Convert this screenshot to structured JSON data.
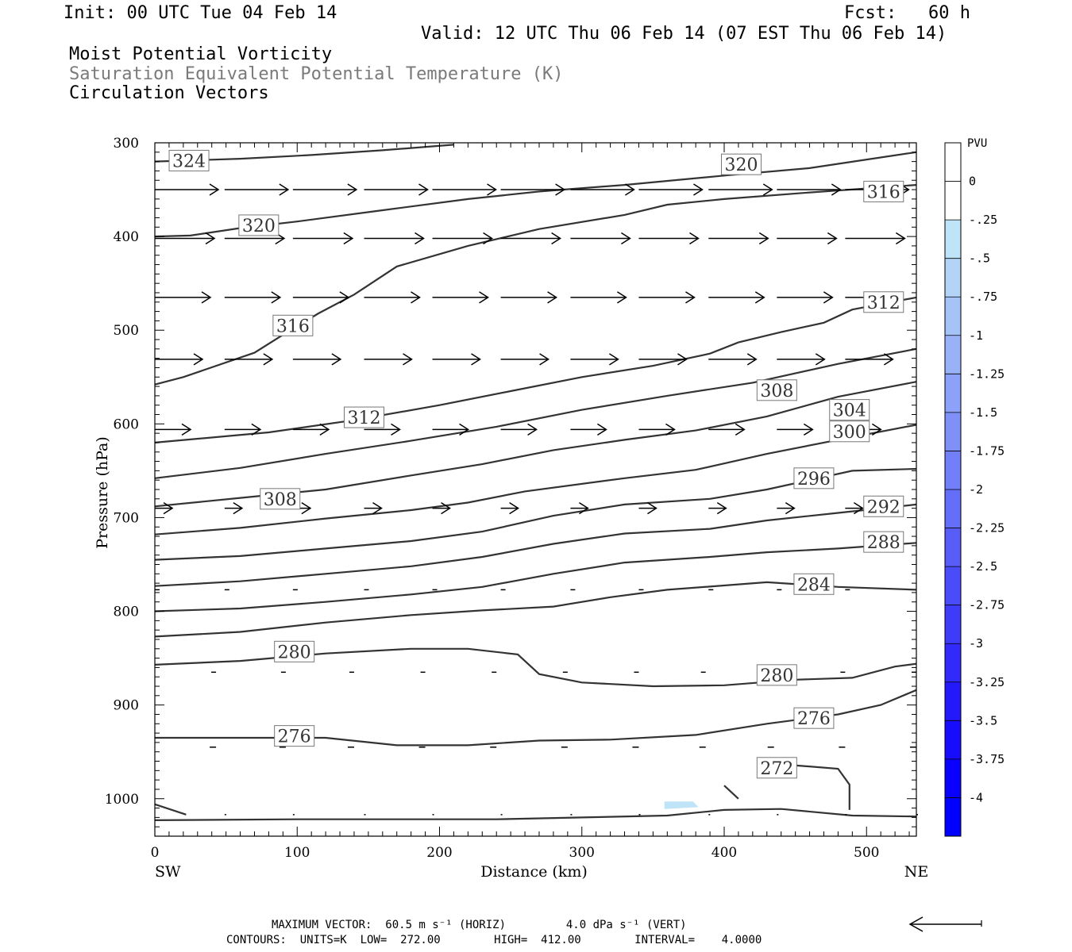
{
  "header": {
    "init": "Init: 00 UTC Tue 04 Feb 14",
    "fcst": "Fcst:   60 h",
    "valid": "Valid: 12 UTC Thu 06 Feb 14 (07 EST Thu 06 Feb 14)",
    "line1": "Moist Potential Vorticity",
    "line2": "Saturation Equivalent Potential Temperature (K)",
    "line3": "Circulation Vectors"
  },
  "footer": {
    "max_vector": "MAXIMUM VECTOR:  60.5 m s⁻¹ (HORIZ)         4.0 dPa s⁻¹ (VERT)",
    "contours": "CONTOURS:  UNITS=K  LOW=  272.00        HIGH=  412.00        INTERVAL=    4.0000"
  },
  "chart_data": {
    "type": "contour",
    "xlabel": "Distance (km)",
    "ylabel": "Pressure (hPa)",
    "xlim": [
      0,
      535
    ],
    "ylim": [
      1040,
      300
    ],
    "x_ticks": [
      0,
      100,
      200,
      300,
      400,
      500
    ],
    "y_ticks": [
      300,
      400,
      500,
      600,
      700,
      800,
      900,
      1000
    ],
    "x_end_labels": [
      "SW",
      "NE"
    ],
    "contour_color": "#333333",
    "shade_color": "#bfe4f7",
    "colorbar": {
      "units": "PVU",
      "labels": [
        "0",
        "-.25",
        "-.5",
        "-.75",
        "-1",
        "-1.25",
        "-1.5",
        "-1.75",
        "-2",
        "-2.25",
        "-2.5",
        "-2.75",
        "-3",
        "-3.25",
        "-3.5",
        "-3.75",
        "-4"
      ],
      "colors": [
        "#ffffff",
        "#ffffff",
        "#bfe4f7",
        "#b3d4f7",
        "#a6c3f7",
        "#99b2f7",
        "#8ca1f7",
        "#7f90f7",
        "#727ff8",
        "#656ef8",
        "#585df8",
        "#4b4cf9",
        "#3e3bf9",
        "#312afa",
        "#2419fb",
        "#170cfc",
        "#0a00fd",
        "#0000ff"
      ]
    },
    "contours": [
      {
        "label": "324",
        "label_at": [
          24,
          319
        ],
        "points": [
          [
            0,
            320
          ],
          [
            60,
            317
          ],
          [
            110,
            313
          ],
          [
            160,
            308
          ],
          [
            210,
            302
          ]
        ]
      },
      {
        "label": "320",
        "label_at": [
          73,
          388
        ],
        "points": [
          [
            0,
            400
          ],
          [
            25,
            399
          ],
          [
            60,
            391
          ],
          [
            100,
            384
          ],
          [
            160,
            372
          ],
          [
            220,
            360
          ],
          [
            270,
            352
          ],
          [
            330,
            345
          ],
          [
            400,
            335
          ],
          [
            460,
            327
          ],
          [
            535,
            310
          ]
        ]
      },
      {
        "label": "320",
        "label_at": [
          412,
          323
        ],
        "points": []
      },
      {
        "label": "316",
        "label_at": [
          512,
          352
        ],
        "points": [
          [
            0,
            558
          ],
          [
            20,
            550
          ],
          [
            70,
            524
          ],
          [
            90,
            505
          ],
          [
            115,
            482
          ],
          [
            140,
            462
          ],
          [
            170,
            432
          ],
          [
            220,
            410
          ],
          [
            270,
            392
          ],
          [
            330,
            377
          ],
          [
            360,
            366
          ],
          [
            400,
            360
          ],
          [
            460,
            353
          ],
          [
            535,
            345
          ]
        ]
      },
      {
        "label": "316",
        "label_at": [
          97,
          495
        ],
        "points": []
      },
      {
        "label": "312",
        "label_at": [
          512,
          470
        ],
        "points": [
          [
            0,
            620
          ],
          [
            80,
            609
          ],
          [
            140,
            596
          ],
          [
            200,
            580
          ],
          [
            250,
            565
          ],
          [
            300,
            550
          ],
          [
            350,
            538
          ],
          [
            390,
            525
          ],
          [
            410,
            513
          ],
          [
            440,
            502
          ],
          [
            470,
            492
          ],
          [
            490,
            478
          ],
          [
            535,
            465
          ]
        ]
      },
      {
        "label": "312",
        "label_at": [
          147,
          593
        ],
        "points": []
      },
      {
        "label": "308",
        "label_at": [
          437,
          564
        ],
        "points": [
          [
            0,
            658
          ],
          [
            60,
            647
          ],
          [
            120,
            632
          ],
          [
            180,
            618
          ],
          [
            240,
            603
          ],
          [
            300,
            585
          ],
          [
            360,
            570
          ],
          [
            420,
            556
          ],
          [
            480,
            536
          ],
          [
            535,
            520
          ]
        ]
      },
      {
        "label": "308",
        "label_at": [
          88,
          680
        ],
        "points": []
      },
      {
        "label": "304",
        "label_at": [
          488,
          585
        ],
        "points": [
          [
            0,
            688
          ],
          [
            60,
            679
          ],
          [
            120,
            670
          ],
          [
            180,
            655
          ],
          [
            230,
            643
          ],
          [
            280,
            628
          ],
          [
            330,
            617
          ],
          [
            380,
            607
          ],
          [
            430,
            592
          ],
          [
            480,
            571
          ],
          [
            535,
            555
          ]
        ]
      },
      {
        "label": "300",
        "label_at": [
          488,
          608
        ],
        "points": [
          [
            0,
            718
          ],
          [
            60,
            711
          ],
          [
            120,
            701
          ],
          [
            180,
            692
          ],
          [
            220,
            684
          ],
          [
            260,
            672
          ],
          [
            330,
            658
          ],
          [
            380,
            649
          ],
          [
            430,
            632
          ],
          [
            480,
            617
          ],
          [
            535,
            601
          ]
        ]
      },
      {
        "label": "296",
        "label_at": [
          463,
          658
        ],
        "points": [
          [
            0,
            745
          ],
          [
            60,
            741
          ],
          [
            120,
            733
          ],
          [
            180,
            725
          ],
          [
            230,
            715
          ],
          [
            280,
            698
          ],
          [
            330,
            686
          ],
          [
            390,
            680
          ],
          [
            430,
            670
          ],
          [
            460,
            660
          ],
          [
            490,
            650
          ],
          [
            535,
            648
          ]
        ]
      },
      {
        "label": "292",
        "label_at": [
          512,
          688
        ],
        "points": [
          [
            0,
            773
          ],
          [
            60,
            768
          ],
          [
            120,
            760
          ],
          [
            180,
            752
          ],
          [
            230,
            742
          ],
          [
            280,
            728
          ],
          [
            330,
            717
          ],
          [
            390,
            712
          ],
          [
            430,
            703
          ],
          [
            480,
            695
          ],
          [
            535,
            686
          ]
        ]
      },
      {
        "label": "288",
        "label_at": [
          512,
          726
        ],
        "points": [
          [
            0,
            800
          ],
          [
            60,
            797
          ],
          [
            120,
            790
          ],
          [
            180,
            782
          ],
          [
            230,
            774
          ],
          [
            280,
            760
          ],
          [
            330,
            748
          ],
          [
            390,
            742
          ],
          [
            430,
            737
          ],
          [
            480,
            733
          ],
          [
            535,
            727
          ]
        ]
      },
      {
        "label": "284",
        "label_at": [
          463,
          771
        ],
        "points": [
          [
            0,
            827
          ],
          [
            60,
            822
          ],
          [
            120,
            812
          ],
          [
            180,
            804
          ],
          [
            230,
            799
          ],
          [
            280,
            795
          ],
          [
            320,
            785
          ],
          [
            360,
            777
          ],
          [
            430,
            769
          ],
          [
            480,
            774
          ],
          [
            535,
            777
          ]
        ]
      },
      {
        "label": "280",
        "label_at": [
          98,
          843
        ],
        "points": [
          [
            0,
            857
          ],
          [
            60,
            853
          ],
          [
            120,
            845
          ],
          [
            180,
            840
          ],
          [
            220,
            840
          ],
          [
            255,
            846
          ],
          [
            270,
            867
          ],
          [
            300,
            876
          ],
          [
            350,
            880
          ],
          [
            400,
            879
          ],
          [
            450,
            873
          ],
          [
            490,
            871
          ],
          [
            520,
            859
          ],
          [
            535,
            856
          ]
        ]
      },
      {
        "label": "280",
        "label_at": [
          437,
          868
        ],
        "points": []
      },
      {
        "label": "276",
        "label_at": [
          98,
          933
        ],
        "points": [
          [
            0,
            935
          ],
          [
            70,
            935
          ],
          [
            120,
            935
          ],
          [
            170,
            943
          ],
          [
            220,
            943
          ],
          [
            270,
            938
          ],
          [
            320,
            937
          ],
          [
            380,
            932
          ],
          [
            430,
            920
          ],
          [
            480,
            910
          ],
          [
            510,
            900
          ],
          [
            535,
            884
          ]
        ]
      },
      {
        "label": "276",
        "label_at": [
          463,
          914
        ],
        "points": []
      },
      {
        "label": "272",
        "label_at": [
          437,
          967
        ],
        "points": [
          [
            400,
            986
          ],
          [
            410,
            1000
          ]
        ]
      },
      {
        "label": "",
        "points": [
          [
            438,
            963
          ],
          [
            480,
            968
          ],
          [
            488,
            985
          ],
          [
            488,
            1012
          ]
        ]
      },
      {
        "label": "",
        "points": [
          [
            0,
            1023
          ],
          [
            100,
            1022
          ],
          [
            240,
            1022
          ],
          [
            300,
            1020
          ],
          [
            360,
            1018
          ],
          [
            400,
            1012
          ],
          [
            440,
            1011
          ],
          [
            490,
            1018
          ],
          [
            535,
            1019
          ]
        ]
      },
      {
        "label": "",
        "points": [
          [
            0,
            1006
          ],
          [
            22,
            1017
          ]
        ]
      }
    ],
    "vectors": [
      {
        "p": 350,
        "len": 80,
        "xs": [
          0,
          49,
          97,
          147,
          195,
          243,
          292,
          340,
          389,
          437,
          485
        ]
      },
      {
        "p": 402,
        "len": 75,
        "xs": [
          0,
          49,
          97,
          147,
          195,
          243,
          292,
          340,
          389,
          437,
          485
        ]
      },
      {
        "p": 465,
        "len": 70,
        "xs": [
          0,
          49,
          97,
          147,
          195,
          243,
          292,
          340,
          389,
          437,
          485
        ]
      },
      {
        "p": 531,
        "len": 60,
        "xs": [
          0,
          49,
          97,
          147,
          195,
          243,
          292,
          340,
          389,
          437,
          485
        ]
      },
      {
        "p": 606,
        "len": 45,
        "xs": [
          0,
          49,
          97,
          147,
          195,
          243,
          292,
          340,
          389,
          437,
          485
        ]
      },
      {
        "p": 690,
        "len": 22,
        "xs": [
          0,
          49,
          97,
          147,
          195,
          243,
          292,
          340,
          389,
          437,
          485
        ]
      },
      {
        "p": 777,
        "len": 6,
        "xs": [
          0,
          49,
          97,
          147,
          195,
          243,
          292,
          340,
          389,
          437,
          485
        ]
      },
      {
        "p": 865,
        "len": -6,
        "xs": [
          43,
          92,
          140,
          190,
          240,
          290,
          340,
          387,
          435,
          485,
          535
        ]
      },
      {
        "p": 945,
        "len": -8,
        "xs": [
          43,
          92,
          140,
          190,
          240,
          290,
          340,
          387,
          435,
          485,
          535
        ]
      },
      {
        "p": 1017,
        "len": 2,
        "xs": [
          49,
          97,
          147,
          195,
          243,
          292,
          340,
          389,
          437,
          485,
          535
        ]
      }
    ]
  }
}
